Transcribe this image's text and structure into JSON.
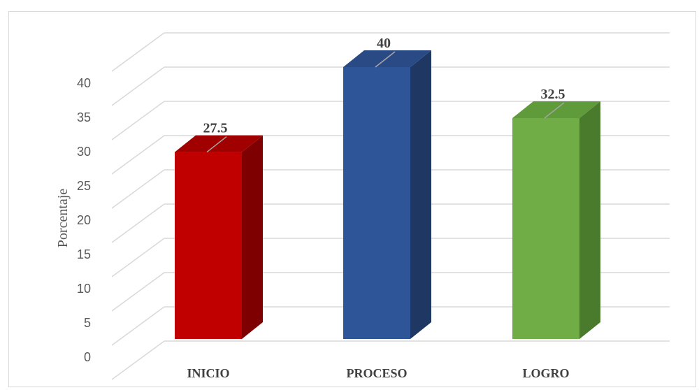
{
  "chart_data": {
    "type": "bar",
    "title": "",
    "xlabel": "",
    "ylabel": "Porcentaje",
    "categories": [
      "INICIO",
      "PROCESO",
      "LOGRO"
    ],
    "values": [
      27.5,
      40,
      32.5
    ],
    "data_labels": [
      "27.5",
      "40",
      "32.5"
    ],
    "ylim": [
      0,
      40
    ],
    "yticks": [
      "0",
      "5",
      "10",
      "15",
      "20",
      "25",
      "30",
      "35",
      "40"
    ],
    "grid": true,
    "style": "3d-column",
    "colors": {
      "INICIO": {
        "front": "#c00000",
        "side": "#7f0000",
        "top": "#a00000"
      },
      "PROCESO": {
        "front": "#2e5597",
        "side": "#1f3763",
        "top": "#2a4a85"
      },
      "LOGRO": {
        "front": "#70ad47",
        "side": "#4a7a2c",
        "top": "#5f9a3b"
      },
      "gridline": "#d9d9d9",
      "leader": "#a6a6a6"
    }
  }
}
